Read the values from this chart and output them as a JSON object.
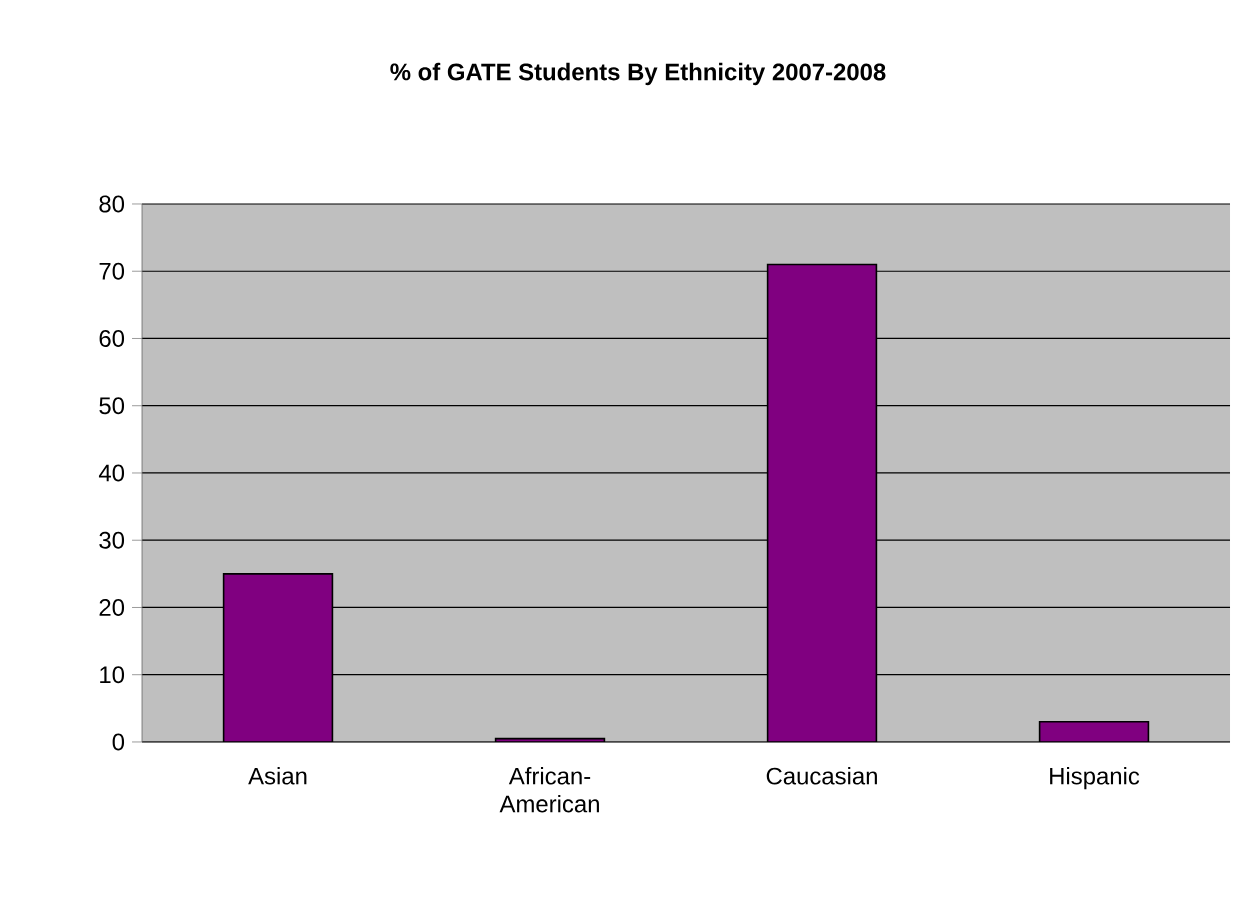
{
  "chart_data": {
    "type": "bar",
    "title": "% of GATE Students By Ethnicity 2007-2008",
    "categories": [
      "Asian",
      "African-American",
      "Caucasian",
      "Hispanic"
    ],
    "values": [
      25,
      0.5,
      71,
      3
    ],
    "color": "#800080",
    "ylim": [
      0,
      80
    ],
    "yticks": [
      0,
      10,
      20,
      30,
      40,
      50,
      60,
      70,
      80
    ],
    "grid": "y"
  }
}
